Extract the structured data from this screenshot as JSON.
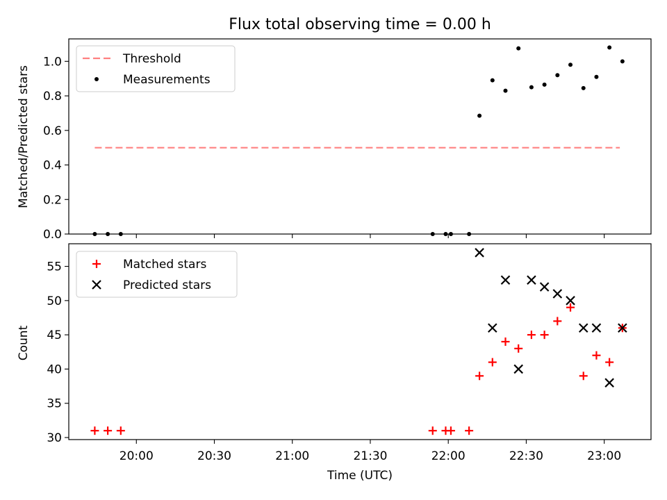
{
  "title": "Flux total observing time = 0.00 h",
  "colors": {
    "threshold": "#ff8080",
    "measurements": "#000000",
    "matched": "#ff0000",
    "predicted": "#000000"
  },
  "chart_data": [
    {
      "type": "scatter",
      "ylabel": "Matched/Predicted stars",
      "ylim": [
        0,
        1.13
      ],
      "yticks": [
        "0.0",
        "0.2",
        "0.4",
        "0.6",
        "0.8",
        "1.0"
      ],
      "ytick_values": [
        0,
        0.2,
        0.4,
        0.6,
        0.8,
        1.0
      ],
      "legend_position": "top-left",
      "threshold": {
        "name": "Threshold",
        "y": 0.5,
        "x_range": [
          "19:44",
          "23:06"
        ]
      },
      "series": [
        {
          "name": "Measurements",
          "x": [
            "19:44",
            "19:49",
            "19:54",
            "21:54",
            "21:59",
            "22:01",
            "22:08",
            "22:12",
            "22:17",
            "22:22",
            "22:27",
            "22:32",
            "22:37",
            "22:42",
            "22:47",
            "22:52",
            "22:57",
            "23:02",
            "23:07"
          ],
          "y": [
            0,
            0,
            0,
            0,
            0,
            0,
            0,
            0.685,
            0.89,
            0.83,
            1.075,
            0.85,
            0.865,
            0.92,
            0.98,
            0.845,
            0.91,
            1.08,
            1.0
          ]
        }
      ]
    },
    {
      "type": "scatter",
      "ylabel": "Count",
      "xlabel": "Time (UTC)",
      "ylim": [
        29.7,
        58.3
      ],
      "yticks": [
        "30",
        "35",
        "40",
        "45",
        "50",
        "55"
      ],
      "ytick_values": [
        30,
        35,
        40,
        45,
        50,
        55
      ],
      "xlim": [
        "19:34",
        "23:18"
      ],
      "xticks": [
        "20:00",
        "20:30",
        "21:00",
        "21:30",
        "22:00",
        "22:30",
        "23:00"
      ],
      "legend_position": "top-left",
      "series": [
        {
          "name": "Matched stars",
          "x": [
            "19:44",
            "19:49",
            "19:54",
            "21:54",
            "21:59",
            "22:01",
            "22:08",
            "22:12",
            "22:17",
            "22:22",
            "22:27",
            "22:32",
            "22:37",
            "22:42",
            "22:47",
            "22:52",
            "22:57",
            "23:02",
            "23:07"
          ],
          "y": [
            31,
            31,
            31,
            31,
            31,
            31,
            31,
            39,
            41,
            44,
            43,
            45,
            45,
            47,
            49,
            39,
            42,
            41,
            46
          ]
        },
        {
          "name": "Predicted stars",
          "x": [
            "22:12",
            "22:17",
            "22:22",
            "22:27",
            "22:32",
            "22:37",
            "22:42",
            "22:47",
            "22:52",
            "22:57",
            "23:02",
            "23:07"
          ],
          "y": [
            57,
            46,
            53,
            40,
            53,
            52,
            51,
            50,
            46,
            46,
            38,
            46
          ]
        }
      ]
    }
  ]
}
